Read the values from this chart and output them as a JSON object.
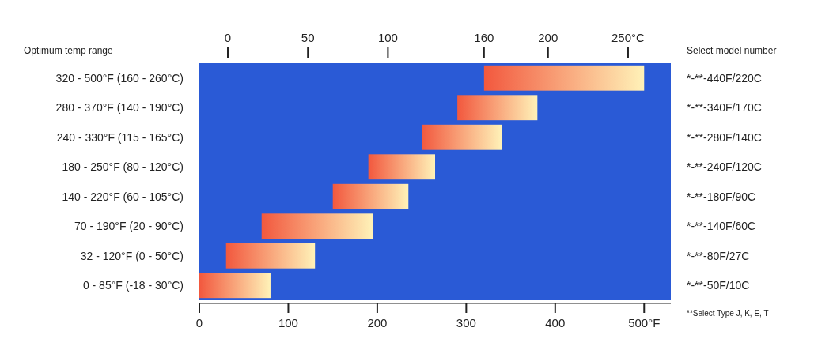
{
  "chart_data": {
    "type": "bar",
    "orientation": "horizontal",
    "ylabel": "Optimum temp range",
    "categories": [
      "320 - 500°F (160 - 260°C)",
      "280 - 370°F (140 - 190°C)",
      "240 - 330°F (115 - 165°C)",
      "180 - 250°F (80 - 120°C)",
      "140 - 220°F (60 - 105°C)",
      "70 - 190°F (20 - 90°C)",
      "32 - 120°F (0 - 50°C)",
      "0 - 85°F (-18 - 30°C)"
    ],
    "base": [
      320,
      290,
      250,
      190,
      150,
      70,
      30,
      0
    ],
    "values": [
      180,
      90,
      90,
      75,
      85,
      125,
      100,
      80
    ],
    "color": "#f2583e",
    "xlim": [
      0,
      530
    ],
    "xticks": [
      0,
      100,
      200,
      300,
      400,
      {
        "value": 500,
        "label": "500°F"
      }
    ],
    "x2lim": [
      -17.8,
      276.7
    ],
    "x2ticks": [
      0,
      50,
      100,
      160,
      200,
      {
        "value": 250,
        "label": "250°C"
      }
    ],
    "annotations": [
      "Select model number",
      "*-**-440F/220C",
      "*-**-340F/170C",
      "*-**-280F/140C",
      "*-**-240F/120C",
      "*-**-180F/90C",
      "*-**-140F/60C",
      "*-**-80F/27C",
      "*-**-50F/10C",
      "**Select Type J, K, E, T"
    ],
    "grid": false
  }
}
